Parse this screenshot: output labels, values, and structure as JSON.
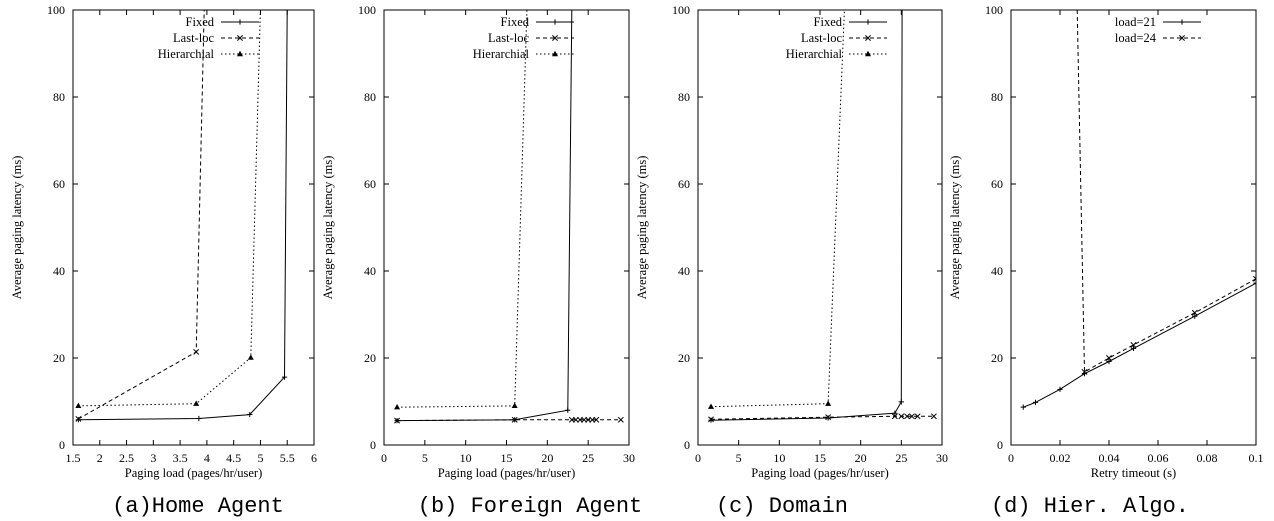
{
  "figure": {
    "panels": [
      {
        "caption": "(a)Home Agent"
      },
      {
        "caption": "(b) Foreign Agent"
      },
      {
        "caption": "(c) Domain"
      },
      {
        "caption": "(d) Hier. Algo."
      }
    ]
  },
  "chart_data": [
    {
      "type": "line",
      "xlabel": "Paging load (pages/hr/user)",
      "ylabel": "Average paging latency (ms)",
      "xlim": [
        1.5,
        6
      ],
      "ylim": [
        0,
        100
      ],
      "xticks": [
        1.5,
        2,
        2.5,
        3,
        3.5,
        4,
        4.5,
        5,
        5.5,
        6
      ],
      "yticks": [
        0,
        20,
        40,
        60,
        80,
        100
      ],
      "legend_position": "top-right",
      "series": [
        {
          "name": "Fixed",
          "marker": "plus",
          "dash": "solid",
          "x": [
            1.6,
            3.85,
            4.8,
            5.45,
            5.5
          ],
          "y": [
            5.8,
            6.1,
            7.0,
            15.6,
            100
          ]
        },
        {
          "name": "Last-loc",
          "marker": "cross",
          "dash": "dashed",
          "x": [
            1.6,
            3.8,
            3.95
          ],
          "y": [
            6.0,
            21.4,
            100
          ]
        },
        {
          "name": "Hierarchial",
          "marker": "triangle",
          "dash": "dotted",
          "x": [
            1.6,
            3.8,
            4.82,
            5.0
          ],
          "y": [
            9.0,
            9.5,
            20.1,
            100
          ]
        }
      ]
    },
    {
      "type": "line",
      "xlabel": "Paging load (pages/hr/user)",
      "ylabel": "Average paging latency (ms)",
      "xlim": [
        0,
        30
      ],
      "ylim": [
        0,
        100
      ],
      "xticks": [
        0,
        5,
        10,
        15,
        20,
        25,
        30
      ],
      "yticks": [
        0,
        20,
        40,
        60,
        80,
        100
      ],
      "legend_position": "top-right",
      "series": [
        {
          "name": "Fixed",
          "marker": "plus",
          "dash": "solid",
          "x": [
            1.6,
            16,
            22.5,
            23
          ],
          "y": [
            5.6,
            5.8,
            8.0,
            100
          ]
        },
        {
          "name": "Last-loc",
          "marker": "cross",
          "dash": "dashed",
          "x": [
            1.6,
            16,
            23,
            23.5,
            24,
            24.5,
            25,
            25.5,
            26,
            29
          ],
          "y": [
            5.6,
            5.8,
            5.8,
            5.8,
            5.8,
            5.8,
            5.8,
            5.8,
            5.8,
            5.8
          ]
        },
        {
          "name": "Hierarchial",
          "marker": "triangle",
          "dash": "dotted",
          "x": [
            1.6,
            16,
            17.5
          ],
          "y": [
            8.7,
            9.0,
            100
          ]
        }
      ]
    },
    {
      "type": "line",
      "xlabel": "Paging load (pages/hr/user)",
      "ylabel": "Average paging latency (ms)",
      "xlim": [
        0,
        30
      ],
      "ylim": [
        0,
        100
      ],
      "xticks": [
        0,
        5,
        10,
        15,
        20,
        25,
        30
      ],
      "yticks": [
        0,
        20,
        40,
        60,
        80,
        100
      ],
      "legend_position": "top-right",
      "series": [
        {
          "name": "Fixed",
          "marker": "plus",
          "dash": "solid",
          "x": [
            1.6,
            16,
            24.2,
            25,
            25.1
          ],
          "y": [
            5.7,
            6.2,
            7.3,
            9.9,
            100
          ]
        },
        {
          "name": "Last-loc",
          "marker": "cross",
          "dash": "dashed",
          "x": [
            1.6,
            16,
            24.2,
            25,
            25.7,
            26.3,
            27,
            29
          ],
          "y": [
            5.9,
            6.4,
            6.6,
            6.6,
            6.6,
            6.6,
            6.6,
            6.6
          ]
        },
        {
          "name": "Hierarchial",
          "marker": "triangle",
          "dash": "dotted",
          "x": [
            1.6,
            16,
            18
          ],
          "y": [
            8.8,
            9.5,
            100
          ]
        }
      ]
    },
    {
      "type": "line",
      "xlabel": "Retry timeout (s)",
      "ylabel": "Average paging latency (ms)",
      "xlim": [
        0,
        0.1
      ],
      "ylim": [
        0,
        100
      ],
      "xticks": [
        0,
        0.02,
        0.04,
        0.06,
        0.08,
        0.1
      ],
      "yticks": [
        0,
        20,
        40,
        60,
        80,
        100
      ],
      "legend_position": "top-right",
      "series": [
        {
          "name": "load=21",
          "marker": "plus",
          "dash": "solid",
          "x": [
            0.005,
            0.01,
            0.02,
            0.03,
            0.04,
            0.05,
            0.075,
            0.1
          ],
          "y": [
            8.7,
            9.8,
            12.8,
            16.4,
            19.2,
            22.2,
            29.6,
            37.2
          ]
        },
        {
          "name": "load=24",
          "marker": "cross",
          "dash": "dashed",
          "x": [
            0.027,
            0.03,
            0.04,
            0.05,
            0.075,
            0.1
          ],
          "y": [
            100,
            16.8,
            20.0,
            23.0,
            30.4,
            38.2
          ]
        }
      ]
    }
  ]
}
